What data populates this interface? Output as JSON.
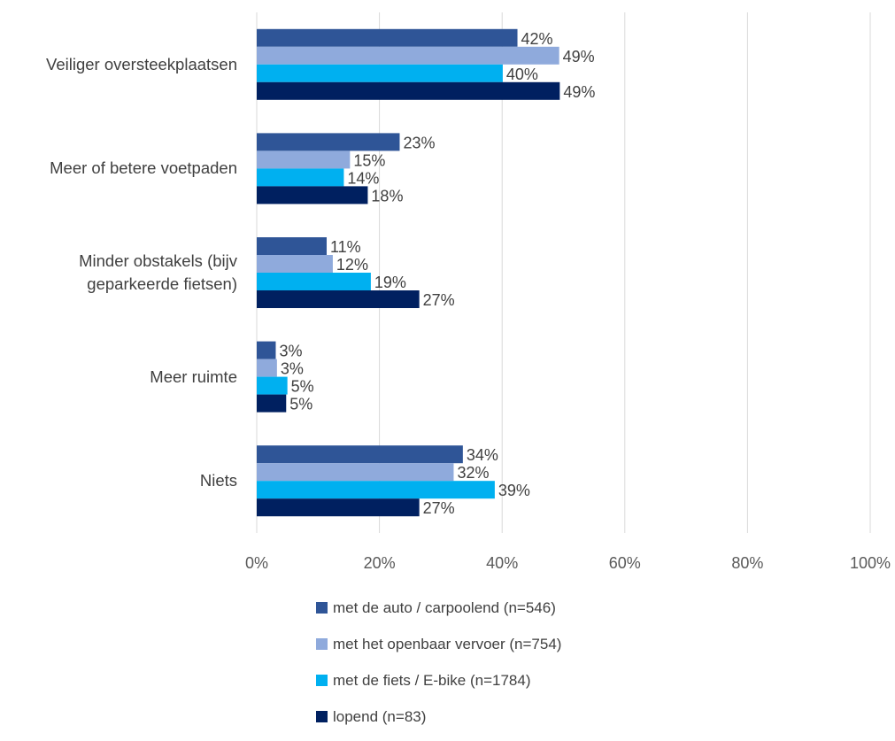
{
  "chart_data": {
    "type": "bar",
    "orientation": "horizontal",
    "categories": [
      "Veiliger oversteekplaatsen",
      "Meer of betere voetpaden",
      "Minder obstakels (bijv geparkeerde fietsen)",
      "Meer ruimte",
      "Niets"
    ],
    "category_lines": [
      [
        "Veiliger oversteekplaatsen"
      ],
      [
        "Meer of betere voetpaden"
      ],
      [
        "Minder obstakels (bijv",
        "geparkeerde fietsen)"
      ],
      [
        "Meer ruimte"
      ],
      [
        "Niets"
      ]
    ],
    "series": [
      {
        "name": "met de auto / carpoolend (n=546)",
        "color": "#2F5597",
        "values": [
          42.5,
          23.3,
          11.4,
          3.1,
          33.6
        ],
        "labels": [
          "42%",
          "23%",
          "11%",
          "3%",
          "34%"
        ]
      },
      {
        "name": "met het openbaar vervoer (n=754)",
        "color": "#8FAADC",
        "values": [
          49.3,
          15.2,
          12.4,
          3.3,
          32.1
        ],
        "labels": [
          "49%",
          "15%",
          "12%",
          "3%",
          "32%"
        ]
      },
      {
        "name": "met de fiets / E-bike (n=1784)",
        "color": "#00B0F0",
        "values": [
          40.1,
          14.2,
          18.6,
          5.0,
          38.8
        ],
        "labels": [
          "40%",
          "14%",
          "19%",
          "5%",
          "39%"
        ]
      },
      {
        "name": "lopend (n=83)",
        "color": "#002060",
        "values": [
          49.4,
          18.1,
          26.5,
          4.8,
          26.5
        ],
        "labels": [
          "49%",
          "18%",
          "27%",
          "5%",
          "27%"
        ]
      }
    ],
    "xlim": [
      0,
      100
    ],
    "x_ticks": [
      "0%",
      "20%",
      "40%",
      "60%",
      "80%",
      "100%"
    ],
    "grid": true,
    "legend_position": "bottom"
  }
}
